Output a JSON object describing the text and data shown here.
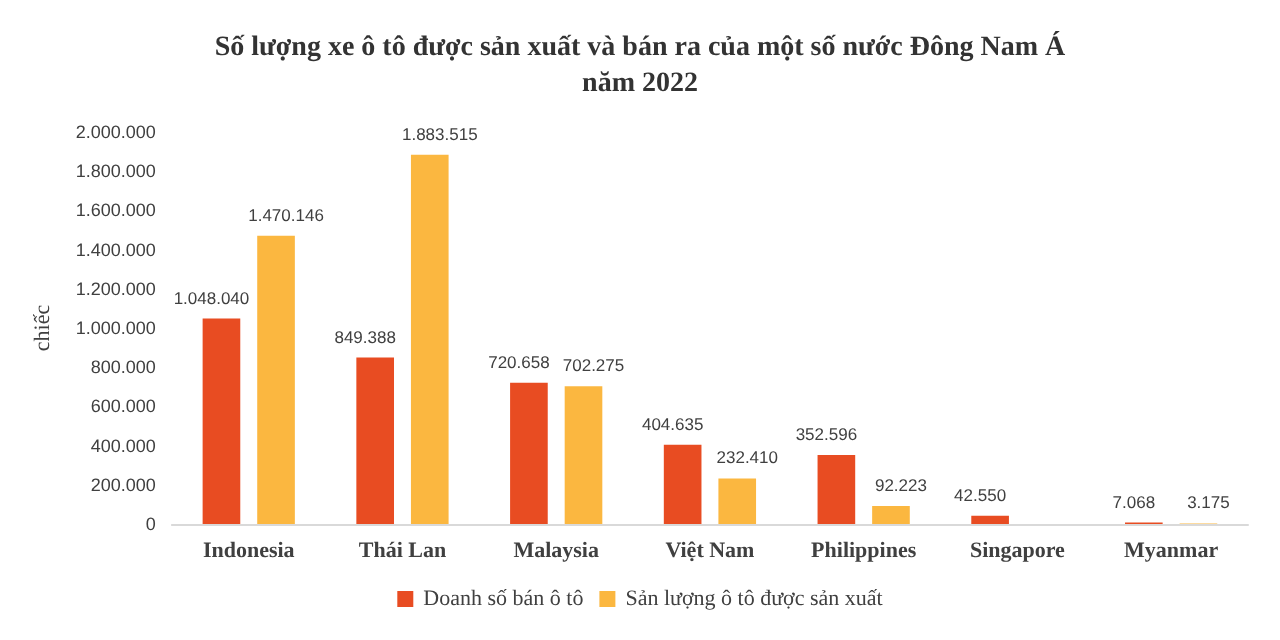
{
  "chart_data": {
    "type": "bar",
    "title": "Số lượng xe ô tô được sản xuất và bán ra của một số nước Đông Nam Á\nnăm 2022",
    "ylabel": "chiếc",
    "categories": [
      "Indonesia",
      "Thái Lan",
      "Malaysia",
      "Việt Nam",
      "Philippines",
      "Singapore",
      "Myanmar"
    ],
    "series": [
      {
        "name": "Doanh số bán ô tô",
        "color": "#e84c22",
        "values": [
          1048040,
          849388,
          720658,
          404635,
          352596,
          42550,
          7068
        ],
        "value_labels": [
          "1.048.040",
          "849.388",
          "720.658",
          "404.635",
          "352.596",
          "42.550",
          "7.068"
        ]
      },
      {
        "name": "Sản lượng ô tô được sản xuất",
        "color": "#fbb740",
        "values": [
          1470146,
          1883515,
          702275,
          232410,
          92223,
          null,
          3175
        ],
        "value_labels": [
          "1.470.146",
          "1.883.515",
          "702.275",
          "232.410",
          "92.223",
          null,
          "3.175"
        ]
      }
    ],
    "ylim": [
      0,
      2000000
    ],
    "yticks": [
      0,
      {
        "value": 200000,
        "label": "200.000"
      },
      {
        "value": 400000,
        "label": "400.000"
      },
      {
        "value": 600000,
        "label": "600.000"
      },
      {
        "value": 800000,
        "label": "800.000"
      },
      {
        "value": 1000000,
        "label": "1.000.000"
      },
      {
        "value": 1200000,
        "label": "1.200.000"
      },
      {
        "value": 1400000,
        "label": "1.400.000"
      },
      {
        "value": 1600000,
        "label": "1.600.000"
      },
      {
        "value": 1800000,
        "label": "1.800.000"
      },
      {
        "value": 2000000,
        "label": "2.000.000"
      }
    ],
    "grid": false,
    "legend": "bottom"
  }
}
